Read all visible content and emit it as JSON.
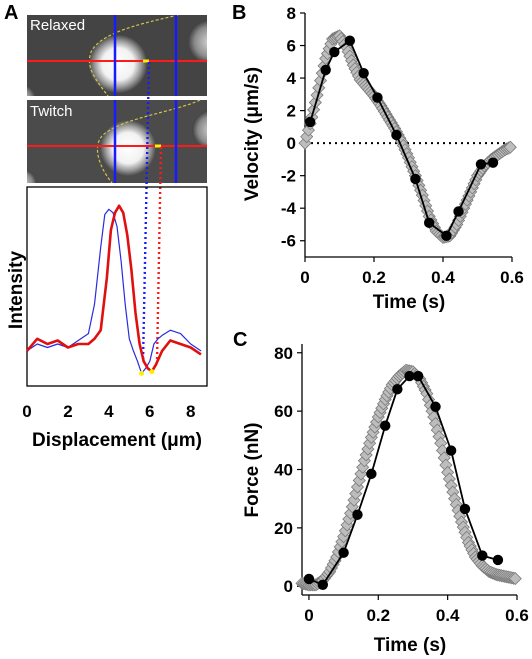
{
  "panel_labels": {
    "a": "A",
    "b": "B",
    "c": "C"
  },
  "image_labels": {
    "top": "Relaxed",
    "bottom": "Twitch"
  },
  "chart_data": [
    {
      "id": "A",
      "type": "line",
      "xlabel": "Displacement (μm)",
      "ylabel": "Intensity",
      "xlim": [
        0,
        8.6
      ],
      "xticks": [
        0,
        2,
        4,
        6,
        8
      ],
      "ylim": [
        0,
        1.1
      ],
      "series": [
        {
          "color": "#2a2ae0",
          "x": [
            0,
            0.5,
            1.0,
            1.5,
            2.0,
            2.5,
            3.0,
            3.3,
            3.6,
            3.8,
            4.0,
            4.2,
            4.4,
            4.6,
            4.8,
            5.0,
            5.2,
            5.4,
            5.6,
            5.8,
            6.0,
            6.2,
            6.4,
            6.6,
            7.0,
            7.5,
            8.0,
            8.5
          ],
          "y": [
            0.18,
            0.22,
            0.2,
            0.22,
            0.2,
            0.24,
            0.28,
            0.45,
            0.78,
            0.97,
            1.0,
            0.98,
            0.9,
            0.7,
            0.45,
            0.25,
            0.18,
            0.12,
            0.05,
            0.08,
            0.12,
            0.22,
            0.25,
            0.27,
            0.3,
            0.28,
            0.22,
            0.18
          ]
        },
        {
          "color": "#e01010",
          "x": [
            0,
            0.5,
            1.0,
            1.5,
            2.0,
            2.5,
            3.0,
            3.3,
            3.6,
            3.9,
            4.1,
            4.3,
            4.5,
            4.7,
            4.9,
            5.1,
            5.3,
            5.5,
            5.7,
            5.9,
            6.1,
            6.3,
            6.6,
            7.0,
            7.5,
            8.0,
            8.5
          ],
          "y": [
            0.18,
            0.25,
            0.22,
            0.24,
            0.2,
            0.22,
            0.22,
            0.25,
            0.3,
            0.6,
            0.88,
            0.98,
            1.02,
            0.98,
            0.85,
            0.65,
            0.4,
            0.22,
            0.12,
            0.08,
            0.06,
            0.1,
            0.18,
            0.24,
            0.22,
            0.2,
            0.16
          ]
        }
      ]
    },
    {
      "id": "B",
      "type": "line",
      "xlabel": "Time (s)",
      "ylabel": "Velocity (μm/s)",
      "xlim": [
        0,
        0.6
      ],
      "ylim": [
        -7,
        8
      ],
      "xticks": [
        0,
        0.2,
        0.4,
        0.6
      ],
      "yticks": [
        -6,
        -4,
        -2,
        0,
        2,
        4,
        6,
        8
      ],
      "model": {
        "x": [
          0.0,
          0.02,
          0.04,
          0.06,
          0.08,
          0.1,
          0.12,
          0.14,
          0.16,
          0.18,
          0.2,
          0.22,
          0.24,
          0.26,
          0.28,
          0.3,
          0.32,
          0.34,
          0.36,
          0.38,
          0.4,
          0.42,
          0.44,
          0.46,
          0.48,
          0.5,
          0.52,
          0.54,
          0.56,
          0.58,
          0.6
        ],
        "y": [
          0.0,
          1.6,
          3.4,
          5.2,
          6.4,
          6.6,
          5.9,
          4.8,
          3.9,
          3.4,
          2.9,
          2.3,
          1.6,
          0.9,
          0.1,
          -0.9,
          -2.0,
          -3.2,
          -4.5,
          -5.4,
          -5.8,
          -5.7,
          -5.0,
          -4.0,
          -3.0,
          -2.0,
          -1.4,
          -1.0,
          -0.7,
          -0.4,
          -0.2
        ]
      },
      "measured": {
        "x": [
          0.015,
          0.06,
          0.085,
          0.13,
          0.17,
          0.21,
          0.265,
          0.32,
          0.36,
          0.41,
          0.445,
          0.51,
          0.545
        ],
        "y": [
          1.3,
          4.5,
          5.6,
          6.3,
          4.3,
          2.8,
          0.5,
          -2.2,
          -4.9,
          -5.7,
          -4.2,
          -1.3,
          -1.2
        ]
      },
      "zero_line": true
    },
    {
      "id": "C",
      "type": "line",
      "xlabel": "Time (s)",
      "ylabel": "Force (nN)",
      "xlim": [
        -0.02,
        0.6
      ],
      "ylim": [
        -3,
        83
      ],
      "xticks": [
        0,
        0.2,
        0.4,
        0.6
      ],
      "yticks": [
        0,
        20,
        40,
        60,
        80
      ],
      "model": {
        "x": [
          -0.02,
          0.0,
          0.02,
          0.04,
          0.06,
          0.08,
          0.1,
          0.12,
          0.14,
          0.16,
          0.18,
          0.2,
          0.22,
          0.24,
          0.26,
          0.28,
          0.3,
          0.32,
          0.34,
          0.36,
          0.38,
          0.4,
          0.42,
          0.44,
          0.46,
          0.48,
          0.5,
          0.52,
          0.54,
          0.56,
          0.58,
          0.6
        ],
        "y": [
          1,
          0.5,
          0.5,
          2,
          5,
          10,
          17,
          25,
          34,
          43,
          51,
          58,
          64,
          69,
          72,
          74,
          73.5,
          71,
          66,
          58,
          49,
          39,
          30,
          22,
          15,
          10,
          7,
          5,
          4,
          3.5,
          3,
          2.5
        ]
      },
      "measured": {
        "x": [
          0.0,
          0.04,
          0.1,
          0.14,
          0.18,
          0.22,
          0.255,
          0.29,
          0.315,
          0.365,
          0.41,
          0.45,
          0.5,
          0.545
        ],
        "y": [
          2.5,
          0.5,
          11.5,
          24.5,
          38.5,
          55,
          67.5,
          72,
          72,
          61.5,
          46.5,
          26.5,
          10.5,
          9
        ]
      },
      "zero_line": false
    }
  ]
}
